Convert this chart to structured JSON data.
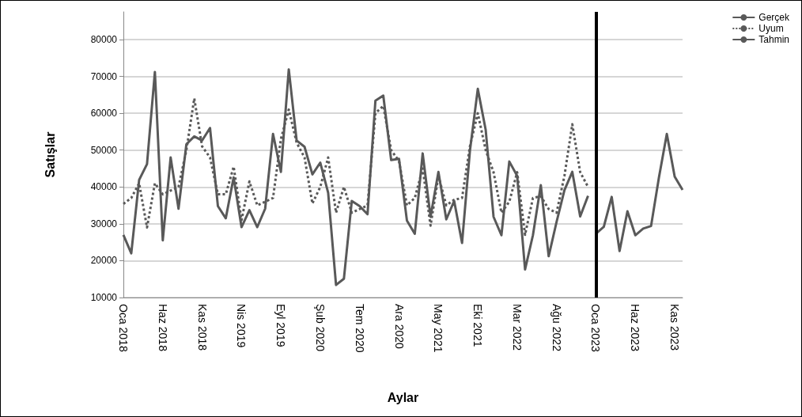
{
  "chart_data": {
    "type": "line",
    "xlabel": "Aylar",
    "ylabel": "Satışlar",
    "categories": [
      "Oca 2018",
      null,
      null,
      null,
      null,
      "Haz 2018",
      null,
      null,
      null,
      null,
      "Kas 2018",
      null,
      null,
      null,
      null,
      "Nis 2019",
      null,
      null,
      null,
      null,
      "Eyl 2019",
      null,
      null,
      null,
      null,
      "Şub 2020",
      null,
      null,
      null,
      null,
      "Tem 2020",
      null,
      null,
      null,
      null,
      "Ara 2020",
      null,
      null,
      null,
      null,
      "May 2021",
      null,
      null,
      null,
      null,
      "Eki 2021",
      null,
      null,
      null,
      null,
      "Mar 2022",
      null,
      null,
      null,
      null,
      "Ağu 2022",
      null,
      null,
      null,
      null,
      "Oca 2023",
      null,
      null,
      null,
      null,
      "Haz 2023",
      null,
      null,
      null,
      null,
      "Kas 2023",
      null
    ],
    "series": [
      {
        "name": "Gerçek",
        "color": "#595959",
        "line_style": "solid",
        "values": [
          27000,
          22000,
          41900,
          46200,
          71200,
          25500,
          48000,
          34100,
          51600,
          53700,
          52600,
          56000,
          34800,
          31500,
          42600,
          29100,
          33700,
          29100,
          34100,
          54400,
          44100,
          71900,
          52600,
          50900,
          43400,
          46600,
          38400,
          13400,
          15100,
          36200,
          34800,
          32600,
          63400,
          64800,
          47300,
          47600,
          30900,
          27300,
          49100,
          31900,
          44100,
          31200,
          36200,
          24800,
          49800,
          66600,
          55500,
          31900,
          26900,
          46900,
          43000,
          17600,
          26900,
          40500,
          21200,
          30500,
          39100,
          44100,
          32000,
          37600,
          null,
          null,
          null,
          null,
          null,
          null,
          null,
          null,
          null,
          null,
          null,
          null
        ]
      },
      {
        "name": "Uyum",
        "color": "#595959",
        "line_style": "dotted",
        "values": [
          35400,
          37000,
          41000,
          29000,
          41000,
          38000,
          39000,
          40000,
          50000,
          64000,
          51000,
          48000,
          38000,
          38000,
          45500,
          31000,
          41500,
          35000,
          36000,
          37000,
          53000,
          61000,
          52000,
          48000,
          35500,
          40000,
          48000,
          33000,
          40000,
          33000,
          34000,
          35000,
          60000,
          62000,
          50000,
          47000,
          35000,
          37000,
          45000,
          29500,
          43000,
          35000,
          36500,
          37000,
          51000,
          60000,
          50000,
          44000,
          33000,
          36000,
          44000,
          27000,
          37000,
          37500,
          34000,
          33000,
          43000,
          57000,
          44000,
          40000,
          null,
          null,
          null,
          null,
          null,
          null,
          null,
          null,
          null,
          null,
          null,
          null
        ]
      },
      {
        "name": "Tahmin",
        "color": "#595959",
        "line_style": "solid",
        "values": [
          null,
          null,
          null,
          null,
          null,
          null,
          null,
          null,
          null,
          null,
          null,
          null,
          null,
          null,
          null,
          null,
          null,
          null,
          null,
          null,
          null,
          null,
          null,
          null,
          null,
          null,
          null,
          null,
          null,
          null,
          null,
          null,
          null,
          null,
          null,
          null,
          null,
          null,
          null,
          null,
          null,
          null,
          null,
          null,
          null,
          null,
          null,
          null,
          null,
          null,
          null,
          null,
          null,
          null,
          null,
          null,
          null,
          null,
          null,
          null,
          27300,
          29200,
          37300,
          22600,
          33400,
          26900,
          28700,
          29400,
          42600,
          54400,
          42800,
          39200
        ]
      }
    ],
    "ylim": [
      10000,
      87500
    ],
    "yticks": [
      10000,
      20000,
      30000,
      40000,
      50000,
      60000,
      70000,
      80000
    ],
    "grid": "y",
    "legend": "top right",
    "marker": "none",
    "ref_lines": [
      {
        "axis": "x",
        "value": "Oca 2023",
        "color": "#000000"
      }
    ]
  }
}
